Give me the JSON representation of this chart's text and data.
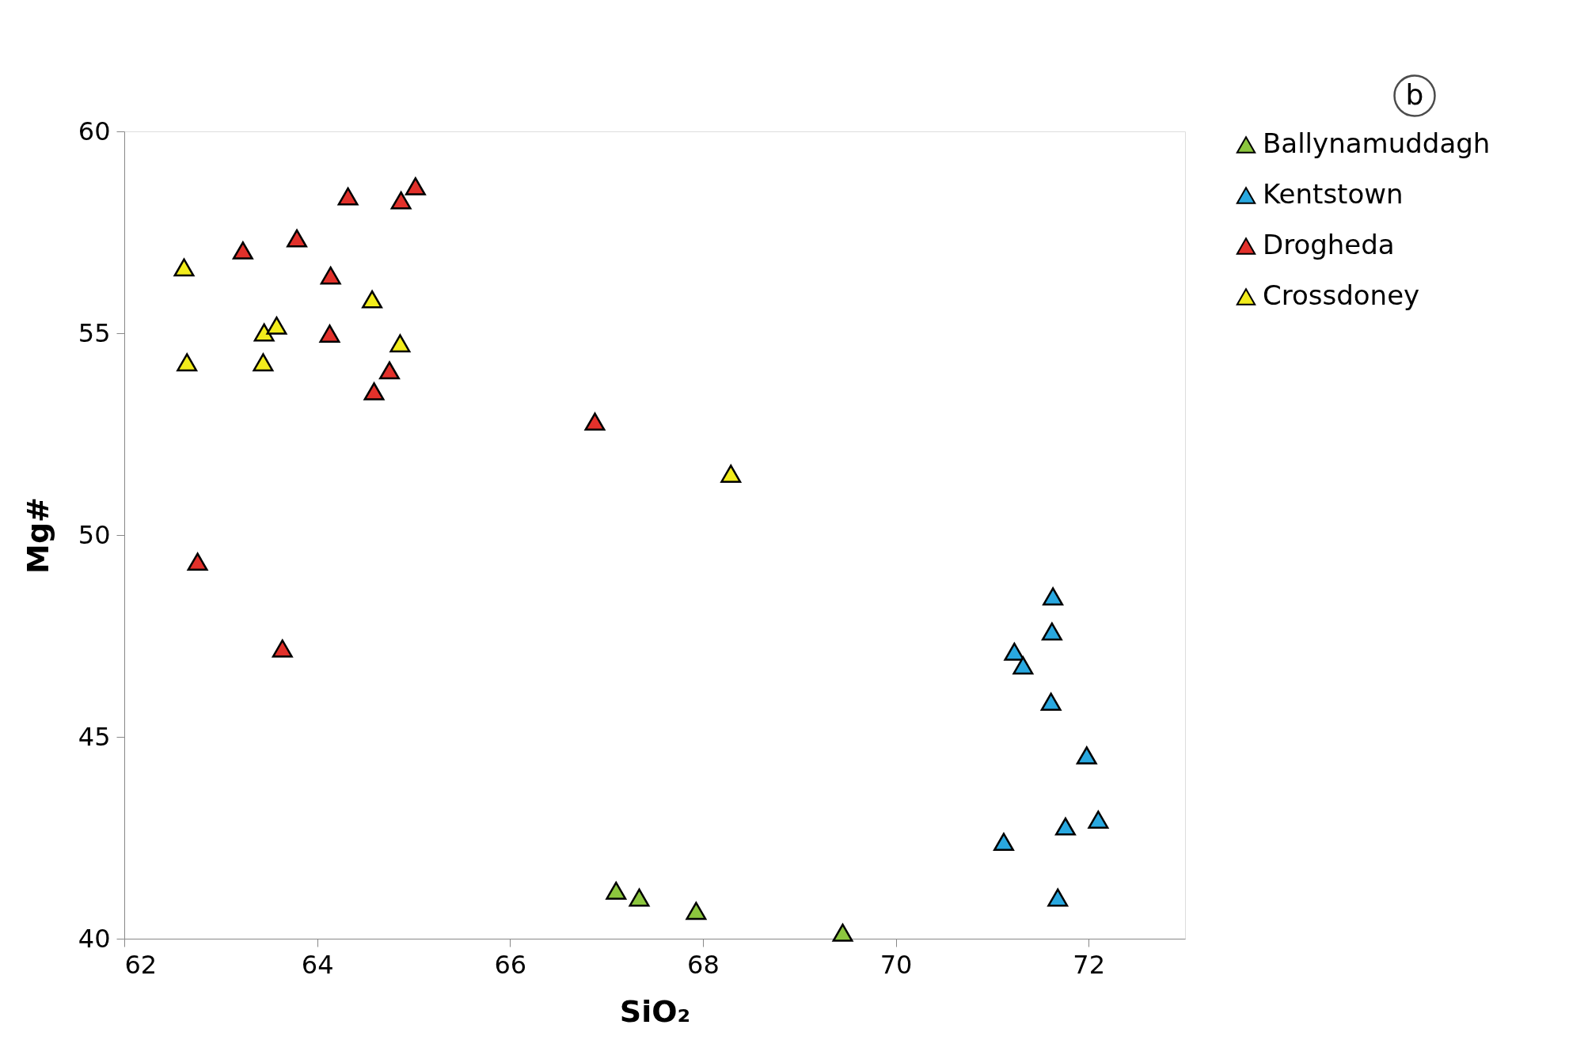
{
  "chart_data": {
    "type": "scatter",
    "xlabel": "SiO₂",
    "ylabel": "Mg#",
    "annotations": [
      "b"
    ],
    "xlim": [
      62,
      73
    ],
    "ylim": [
      40,
      60
    ],
    "xticks": [
      62,
      64,
      66,
      68,
      70,
      72
    ],
    "yticks": [
      40,
      45,
      50,
      55,
      60
    ],
    "grid": false,
    "legend": "right",
    "marker": "triangle",
    "series": [
      {
        "name": "Ballynamuddagh",
        "color": "#8cc63e",
        "x": [
          67.1,
          67.34,
          67.93,
          69.45
        ],
        "values": [
          41.19,
          41.02,
          40.69,
          40.15
        ]
      },
      {
        "name": "Kentstown",
        "color": "#29a8e0",
        "x": [
          71.63,
          71.62,
          71.23,
          71.32,
          71.61,
          71.98,
          72.1,
          71.76,
          71.12,
          71.68
        ],
        "values": [
          48.48,
          47.61,
          47.11,
          46.77,
          45.87,
          44.54,
          42.95,
          42.78,
          42.4,
          41.02
        ]
      },
      {
        "name": "Drogheda",
        "color": "#e2312b",
        "x": [
          63.23,
          63.79,
          64.32,
          64.87,
          65.02,
          64.14,
          64.13,
          64.75,
          64.59,
          66.88,
          62.76,
          63.64
        ],
        "values": [
          57.05,
          57.35,
          58.39,
          58.29,
          58.64,
          56.43,
          54.99,
          54.08,
          53.56,
          52.81,
          49.34,
          47.19
        ]
      },
      {
        "name": "Crossdoney",
        "color": "#f2ec1c",
        "x": [
          62.62,
          62.65,
          63.44,
          63.45,
          63.58,
          64.57,
          64.86,
          68.29
        ],
        "values": [
          56.63,
          54.28,
          54.28,
          55.02,
          55.19,
          55.84,
          54.75,
          51.52
        ]
      }
    ]
  }
}
